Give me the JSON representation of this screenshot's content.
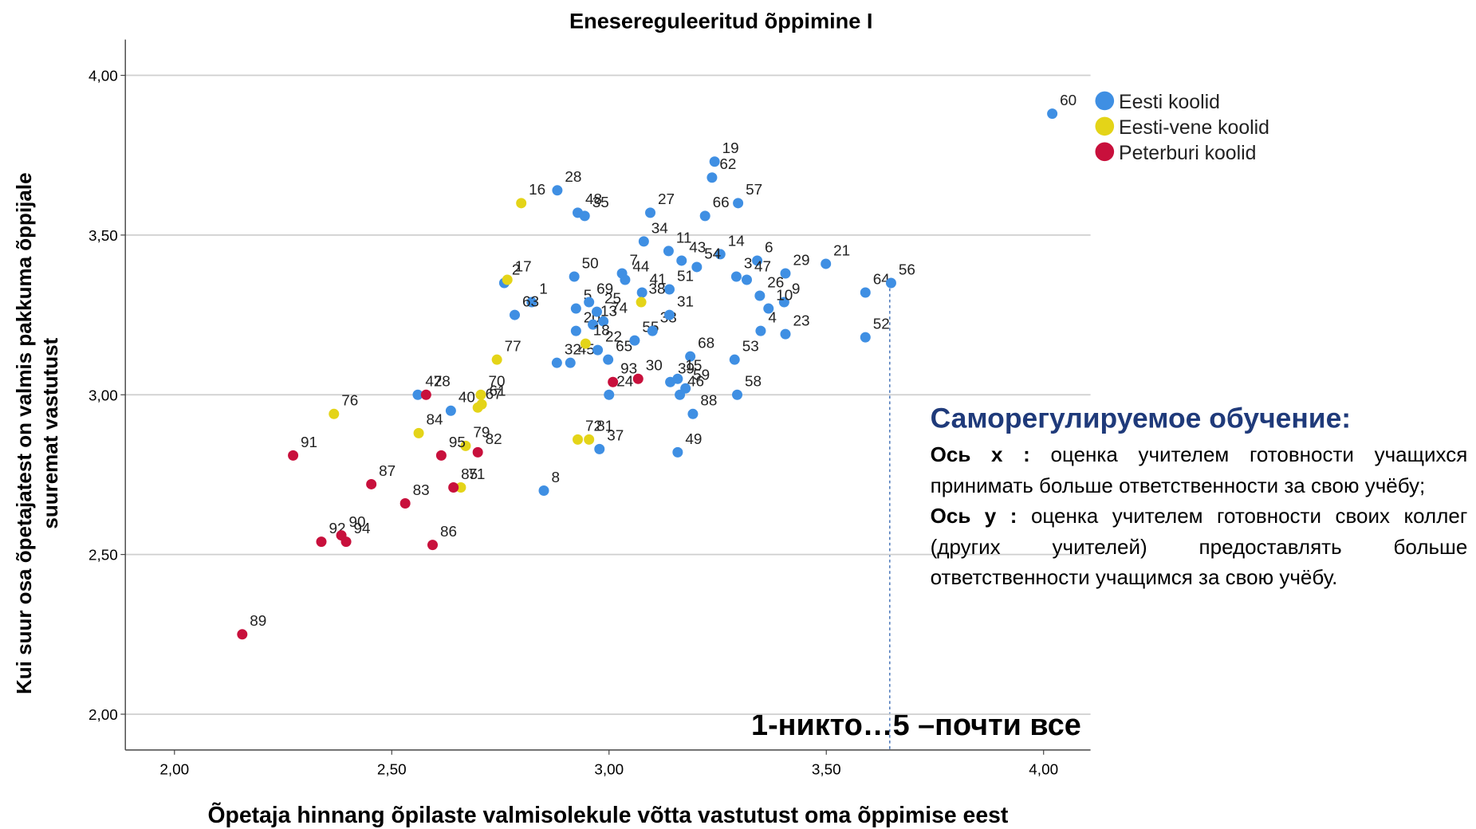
{
  "chart_data": {
    "type": "scatter",
    "title": "Enesereguleeritud õppimine I",
    "x_label": "Õpetaja hinnang õpilaste valmisolekule võtta vastutust oma õppimise eest",
    "y_label": [
      "Kui suur osa õpetajatest on  valmis pakkuma õppijale",
      "suuremat vastutust"
    ],
    "xlim": [
      1.887,
      4.108
    ],
    "ylim": [
      1.888,
      4.112
    ],
    "xticks": [
      {
        "value": 2,
        "label": "2,00"
      },
      {
        "value": 2.5,
        "label": "2,50"
      },
      {
        "value": 3,
        "label": "3,00"
      },
      {
        "value": 3.5,
        "label": "3,50"
      },
      {
        "value": 4,
        "label": "4,00"
      }
    ],
    "yticks": [
      {
        "value": 2,
        "label": "2,00"
      },
      {
        "value": 2.5,
        "label": "2,50"
      },
      {
        "value": 3,
        "label": "3,00"
      },
      {
        "value": 3.5,
        "label": "3,50"
      },
      {
        "value": 4,
        "label": "4,00"
      }
    ],
    "grid": true,
    "legend": "upper right",
    "annotation": "1-никто…5 –почти все",
    "series": [
      {
        "name": "Eesti koolid",
        "color": "#3f8fe3",
        "labels": [
          "60",
          "19",
          "62",
          "57",
          "66",
          "27",
          "28",
          "48",
          "35",
          "34",
          "11",
          "43",
          "14",
          "6",
          "29",
          "21",
          "64",
          "56",
          "52",
          "3",
          "47",
          "9",
          "26",
          "10",
          "23",
          "4",
          "53",
          "58",
          "54",
          "51",
          "50",
          "7",
          "44",
          "41",
          "1",
          "2",
          "5",
          "20",
          "69",
          "25",
          "74",
          "13",
          "45",
          "22",
          "65",
          "63",
          "32",
          "55",
          "33",
          "31",
          "68",
          "39",
          "15",
          "59",
          "46",
          "24",
          "88",
          "49",
          "37",
          "8",
          "40",
          "42"
        ],
        "x": [
          4.02,
          3.243,
          3.237,
          3.297,
          3.221,
          3.095,
          2.881,
          2.928,
          2.944,
          3.08,
          3.137,
          3.167,
          3.256,
          3.341,
          3.406,
          3.499,
          3.59,
          3.649,
          3.59,
          3.293,
          3.317,
          3.403,
          3.347,
          3.367,
          3.406,
          3.349,
          3.289,
          3.295,
          3.202,
          3.139,
          2.92,
          3.03,
          3.037,
          3.076,
          2.822,
          2.759,
          2.924,
          2.924,
          2.954,
          2.972,
          2.987,
          2.963,
          2.911,
          2.974,
          2.998,
          2.783,
          2.88,
          3.059,
          3.1,
          3.139,
          3.187,
          3.141,
          3.158,
          3.176,
          3.163,
          3.0,
          3.193,
          3.158,
          2.978,
          2.85,
          2.636,
          2.56
        ],
        "y": [
          3.88,
          3.73,
          3.68,
          3.6,
          3.56,
          3.57,
          3.64,
          3.57,
          3.56,
          3.48,
          3.45,
          3.42,
          3.44,
          3.42,
          3.38,
          3.41,
          3.32,
          3.35,
          3.18,
          3.37,
          3.36,
          3.29,
          3.31,
          3.27,
          3.19,
          3.2,
          3.11,
          3.0,
          3.4,
          3.33,
          3.37,
          3.38,
          3.36,
          3.32,
          3.29,
          3.35,
          3.27,
          3.2,
          3.29,
          3.26,
          3.23,
          3.22,
          3.1,
          3.14,
          3.11,
          3.25,
          3.1,
          3.17,
          3.2,
          3.25,
          3.12,
          3.04,
          3.05,
          3.02,
          3.0,
          3.0,
          2.94,
          2.82,
          2.83,
          2.7,
          2.95,
          3.0
        ]
      },
      {
        "name": "Eesti-vene koolid",
        "color": "#e4d418",
        "labels": [
          "17",
          "18",
          "38",
          "77",
          "16",
          "70",
          "61",
          "67",
          "76",
          "84",
          "79",
          "72",
          "81",
          "71"
        ],
        "x": [
          2.766,
          2.946,
          3.074,
          2.742,
          2.798,
          2.705,
          2.707,
          2.698,
          2.367,
          2.562,
          2.67,
          2.928,
          2.954,
          2.659
        ],
        "y": [
          3.36,
          3.16,
          3.29,
          3.11,
          3.6,
          3.0,
          2.97,
          2.96,
          2.94,
          2.88,
          2.84,
          2.86,
          2.86,
          2.71
        ]
      },
      {
        "name": "Peterburi koolid",
        "color": "#c8103c",
        "labels": [
          "93",
          "30",
          "78",
          "91",
          "95",
          "82",
          "85",
          "87",
          "83",
          "92",
          "90",
          "94",
          "86",
          "89"
        ],
        "x": [
          3.009,
          3.067,
          2.579,
          2.273,
          2.614,
          2.698,
          2.642,
          2.453,
          2.531,
          2.338,
          2.384,
          2.395,
          2.594,
          2.156
        ],
        "y": [
          3.04,
          3.05,
          3.0,
          2.81,
          2.81,
          2.82,
          2.71,
          2.72,
          2.66,
          2.54,
          2.56,
          2.54,
          2.53,
          2.25
        ]
      }
    ]
  },
  "panel": {
    "title": "Саморегулируемое обучение:",
    "x_head": "Ось x :",
    "x_text": "оценка учителем готовности учащихся принимать больше ответственности за свою учёбу;",
    "y_head": "Ось y :",
    "y_text": "оценка учителем готовности своих коллег (других учителей) предоставлять больше ответственности учащимся за свою учёбу."
  }
}
